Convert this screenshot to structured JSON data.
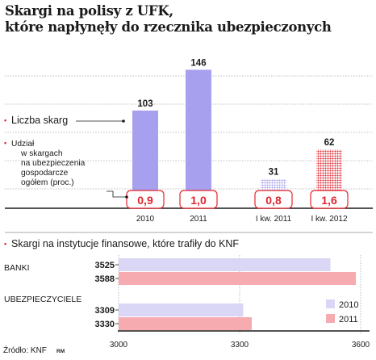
{
  "header": {
    "title_line1": "Skargi na polisy z UFK,",
    "title_line2": "które napłynęły do rzecznika ubezpieczonych"
  },
  "chart_data": [
    {
      "type": "bar",
      "categories": [
        "2010",
        "2011",
        "I kw. 2011",
        "I kw. 2012"
      ],
      "series": [
        {
          "name": "Liczba skarg",
          "values": [
            103,
            146,
            31,
            62
          ]
        },
        {
          "name_lines": [
            "Udział",
            "w skargach",
            "na ubezpieczenia",
            "gospodarcze",
            "ogółem (proc.)"
          ],
          "values": [
            "0,9",
            "1,0",
            "0,8",
            "1,6"
          ]
        }
      ],
      "legend": [
        "Liczba skarg",
        "Udział w skargach na ubezpieczenia gospodarcze ogółem (proc.)"
      ],
      "bar_styles": [
        "solid",
        "solid",
        "dotted",
        "dotted"
      ],
      "ylim": [
        0,
        160
      ],
      "grid": true
    },
    {
      "type": "bar",
      "orientation": "horizontal",
      "title": "Skargi na instytucje finansowe, które trafiły do KNF",
      "categories": [
        "BANKI",
        "UBEZPIECZYCIELE"
      ],
      "series": [
        {
          "name": "2010",
          "values": [
            3525,
            3309
          ]
        },
        {
          "name": "2011",
          "values": [
            3588,
            3330
          ]
        }
      ],
      "xlim": [
        3000,
        3600
      ],
      "xticks": [
        "3000",
        "3300",
        "3600"
      ],
      "legend_placement": "bottom-right",
      "grid": true
    }
  ],
  "colors": {
    "purple": "#a6a0ee",
    "red": "#ee6a73",
    "light_purple": "#d9d6f6",
    "light_red": "#f5abb0",
    "accent_red": "#e2252f",
    "grid": "#a9a9a9"
  },
  "footer": {
    "source": "Źródło: KNF",
    "credit": "RM"
  }
}
